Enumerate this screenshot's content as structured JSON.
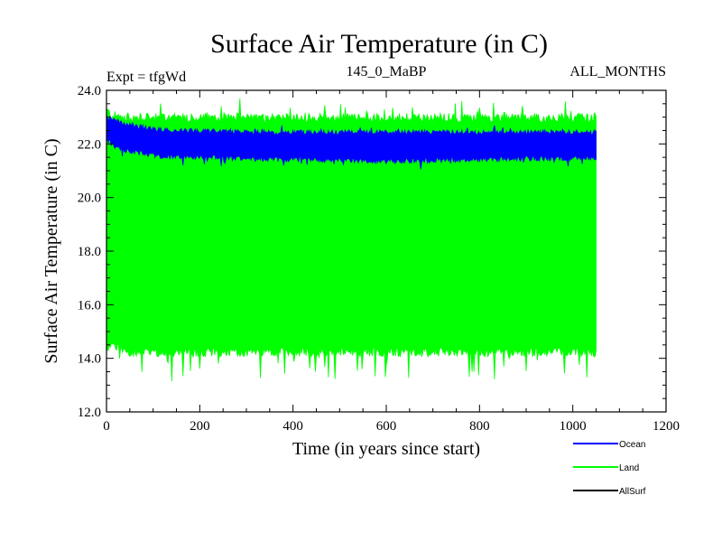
{
  "chart_data": {
    "type": "line",
    "title": "Surface Air Temperature (in C)",
    "subtitle_left": "Expt = tfgWd",
    "subtitle_center": "145_0_MaBP",
    "subtitle_right": "ALL_MONTHS",
    "xlabel": "Time (in years since start)",
    "ylabel": "Surface Air Temperature (in C)",
    "xlim": [
      0,
      1200
    ],
    "ylim": [
      12.0,
      24.0
    ],
    "x_ticks": [
      0,
      200,
      400,
      600,
      800,
      1000,
      1200
    ],
    "x_tick_labels": [
      "0",
      "200",
      "400",
      "600",
      "800",
      "1000",
      "1200"
    ],
    "y_ticks": [
      12.0,
      14.0,
      16.0,
      18.0,
      20.0,
      22.0,
      24.0
    ],
    "y_tick_labels": [
      "12.0",
      "14.0",
      "16.0",
      "18.0",
      "20.0",
      "22.0",
      "24.0"
    ],
    "x_range_data": [
      0,
      1050
    ],
    "series": [
      {
        "name": "Land",
        "color": "#00ff00",
        "x_range": [
          0,
          1050
        ],
        "upper_envelope": [
          [
            0,
            23.2
          ],
          [
            10,
            23.0
          ],
          [
            50,
            22.9
          ],
          [
            200,
            22.9
          ],
          [
            500,
            22.9
          ],
          [
            800,
            22.9
          ],
          [
            1050,
            22.9
          ]
        ],
        "lower_envelope": [
          [
            0,
            14.4
          ],
          [
            10,
            14.6
          ],
          [
            50,
            14.3
          ],
          [
            200,
            14.3
          ],
          [
            500,
            14.3
          ],
          [
            800,
            14.3
          ],
          [
            1050,
            14.3
          ]
        ],
        "peak_max": 23.7,
        "trough_min": 13.1
      },
      {
        "name": "Ocean",
        "color": "#0000ff",
        "x_range": [
          0,
          1050
        ],
        "upper_envelope": [
          [
            0,
            23.0
          ],
          [
            20,
            22.8
          ],
          [
            100,
            22.5
          ],
          [
            300,
            22.4
          ],
          [
            600,
            22.4
          ],
          [
            900,
            22.4
          ],
          [
            1050,
            22.4
          ]
        ],
        "lower_envelope": [
          [
            0,
            22.2
          ],
          [
            20,
            21.9
          ],
          [
            100,
            21.6
          ],
          [
            300,
            21.5
          ],
          [
            600,
            21.4
          ],
          [
            900,
            21.5
          ],
          [
            1050,
            21.5
          ]
        ]
      },
      {
        "name": "AllSurf",
        "color": "#000000",
        "values": []
      }
    ],
    "legend": {
      "placement": "bottom-right",
      "entries": [
        "Ocean",
        "Land",
        "AllSurf"
      ]
    }
  }
}
